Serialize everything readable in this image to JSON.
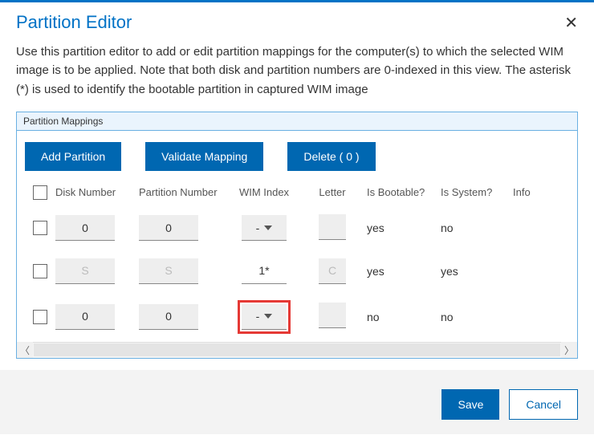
{
  "dialog": {
    "title": "Partition Editor",
    "description": "Use this partition editor to add or edit partition mappings for the computer(s) to which the selected WIM image is to be applied. Note that both disk and partition numbers are 0-indexed in this view. The asterisk (*) is used to identify the bootable partition in captured WIM image"
  },
  "panel": {
    "header": "Partition Mappings"
  },
  "toolbar": {
    "add": "Add Partition",
    "validate": "Validate Mapping",
    "delete": "Delete ( 0 )"
  },
  "columns": {
    "disk": "Disk Number",
    "partition": "Partition Number",
    "wim": "WIM Index",
    "letter": "Letter",
    "bootable": "Is Bootable?",
    "system": "Is System?",
    "info": "Info"
  },
  "rows": [
    {
      "disk": "0",
      "partition": "0",
      "wim": "-",
      "wimDropdown": true,
      "letter": "",
      "bootable": "yes",
      "system": "no",
      "dim": false,
      "highlight": false
    },
    {
      "disk": "S",
      "partition": "S",
      "wim": "1*",
      "wimDropdown": false,
      "letter": "C",
      "bootable": "yes",
      "system": "yes",
      "dim": true,
      "highlight": false
    },
    {
      "disk": "0",
      "partition": "0",
      "wim": "-",
      "wimDropdown": true,
      "letter": "",
      "bootable": "no",
      "system": "no",
      "dim": false,
      "highlight": true
    }
  ],
  "footer": {
    "save": "Save",
    "cancel": "Cancel"
  }
}
